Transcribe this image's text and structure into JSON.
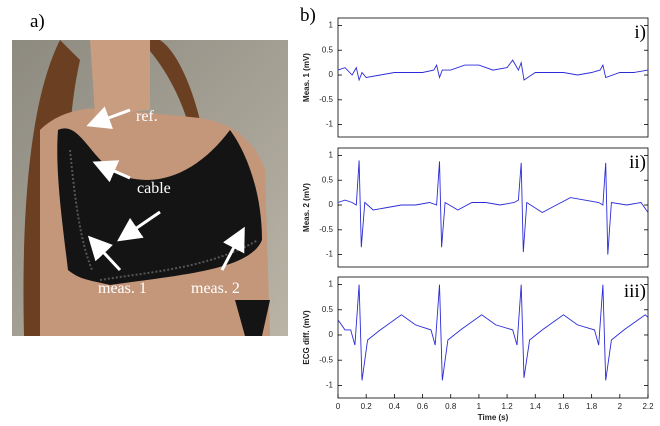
{
  "panel_a": {
    "label": "a)",
    "annotations": [
      "ref.",
      "cable",
      "meas. 1",
      "meas. 2"
    ]
  },
  "panel_b": {
    "label": "b)"
  },
  "chart_data": [
    {
      "type": "line",
      "annotation": "i)",
      "ylabel": "Meas. 1 (mV)",
      "color": "#2b2bd9",
      "xlim": [
        0,
        2.2
      ],
      "ylim": [
        -1.25,
        1.15
      ],
      "yticks": [
        -1,
        -0.5,
        0,
        0.5,
        1
      ],
      "x": [
        0,
        0.05,
        0.1,
        0.13,
        0.15,
        0.17,
        0.2,
        0.3,
        0.4,
        0.5,
        0.6,
        0.68,
        0.7,
        0.72,
        0.74,
        0.8,
        0.9,
        1.0,
        1.1,
        1.2,
        1.24,
        1.28,
        1.3,
        1.32,
        1.4,
        1.5,
        1.6,
        1.7,
        1.8,
        1.86,
        1.88,
        1.9,
        2.0,
        2.1,
        2.2
      ],
      "values": [
        0.1,
        0.15,
        0.0,
        0.15,
        -0.1,
        0.05,
        -0.05,
        0.0,
        0.05,
        0.05,
        0.05,
        0.1,
        0.2,
        -0.05,
        0.1,
        0.1,
        0.2,
        0.2,
        0.1,
        0.15,
        0.3,
        0.1,
        0.25,
        -0.1,
        0.05,
        0.05,
        0.05,
        0.0,
        0.05,
        0.1,
        0.2,
        -0.05,
        0.05,
        0.05,
        0.1
      ]
    },
    {
      "type": "line",
      "annotation": "ii)",
      "ylabel": "Meas. 2 (mV)",
      "color": "#2b2bd9",
      "xlim": [
        0,
        2.2
      ],
      "ylim": [
        -1.25,
        1.15
      ],
      "yticks": [
        -1,
        -0.5,
        0,
        0.5,
        1
      ],
      "x": [
        0,
        0.05,
        0.1,
        0.13,
        0.15,
        0.165,
        0.19,
        0.25,
        0.35,
        0.45,
        0.55,
        0.65,
        0.7,
        0.72,
        0.735,
        0.76,
        0.85,
        0.95,
        1.05,
        1.15,
        1.25,
        1.28,
        1.3,
        1.315,
        1.34,
        1.45,
        1.55,
        1.65,
        1.75,
        1.85,
        1.88,
        1.9,
        1.915,
        1.94,
        2.05,
        2.15,
        2.2
      ],
      "values": [
        0.05,
        0.1,
        0.05,
        0.0,
        0.9,
        -0.85,
        0.05,
        -0.1,
        -0.05,
        0.0,
        0.0,
        0.05,
        0.0,
        0.88,
        -0.85,
        0.05,
        -0.1,
        0.05,
        0.05,
        0.0,
        0.05,
        0.1,
        0.85,
        -0.95,
        0.05,
        -0.15,
        0.0,
        0.15,
        0.1,
        0.05,
        0.0,
        0.85,
        -1.0,
        0.05,
        0.0,
        0.05,
        -0.15
      ]
    },
    {
      "type": "line",
      "annotation": "iii)",
      "ylabel": "ECG diff. (mV)",
      "xlabel": "Time (s)",
      "color": "#2b2bd9",
      "xlim": [
        0,
        2.2
      ],
      "ylim": [
        -1.25,
        1.15
      ],
      "yticks": [
        -1,
        -0.5,
        0,
        0.5,
        1
      ],
      "xticks": [
        0,
        0.2,
        0.4,
        0.6,
        0.8,
        1,
        1.2,
        1.4,
        1.6,
        1.8,
        2,
        2.2
      ],
      "x": [
        0,
        0.05,
        0.09,
        0.12,
        0.15,
        0.17,
        0.21,
        0.3,
        0.45,
        0.55,
        0.66,
        0.69,
        0.72,
        0.74,
        0.78,
        0.87,
        1.02,
        1.12,
        1.24,
        1.27,
        1.3,
        1.32,
        1.36,
        1.45,
        1.6,
        1.7,
        1.82,
        1.85,
        1.88,
        1.9,
        1.94,
        2.03,
        2.18,
        2.2
      ],
      "values": [
        0.3,
        0.1,
        0.1,
        -0.2,
        1.0,
        -0.9,
        -0.1,
        0.1,
        0.4,
        0.2,
        0.1,
        -0.2,
        1.0,
        -0.9,
        -0.1,
        0.1,
        0.4,
        0.2,
        0.1,
        -0.2,
        1.0,
        -0.85,
        -0.1,
        0.1,
        0.4,
        0.2,
        0.1,
        -0.2,
        1.0,
        -0.9,
        -0.1,
        0.1,
        0.4,
        0.35
      ]
    }
  ]
}
